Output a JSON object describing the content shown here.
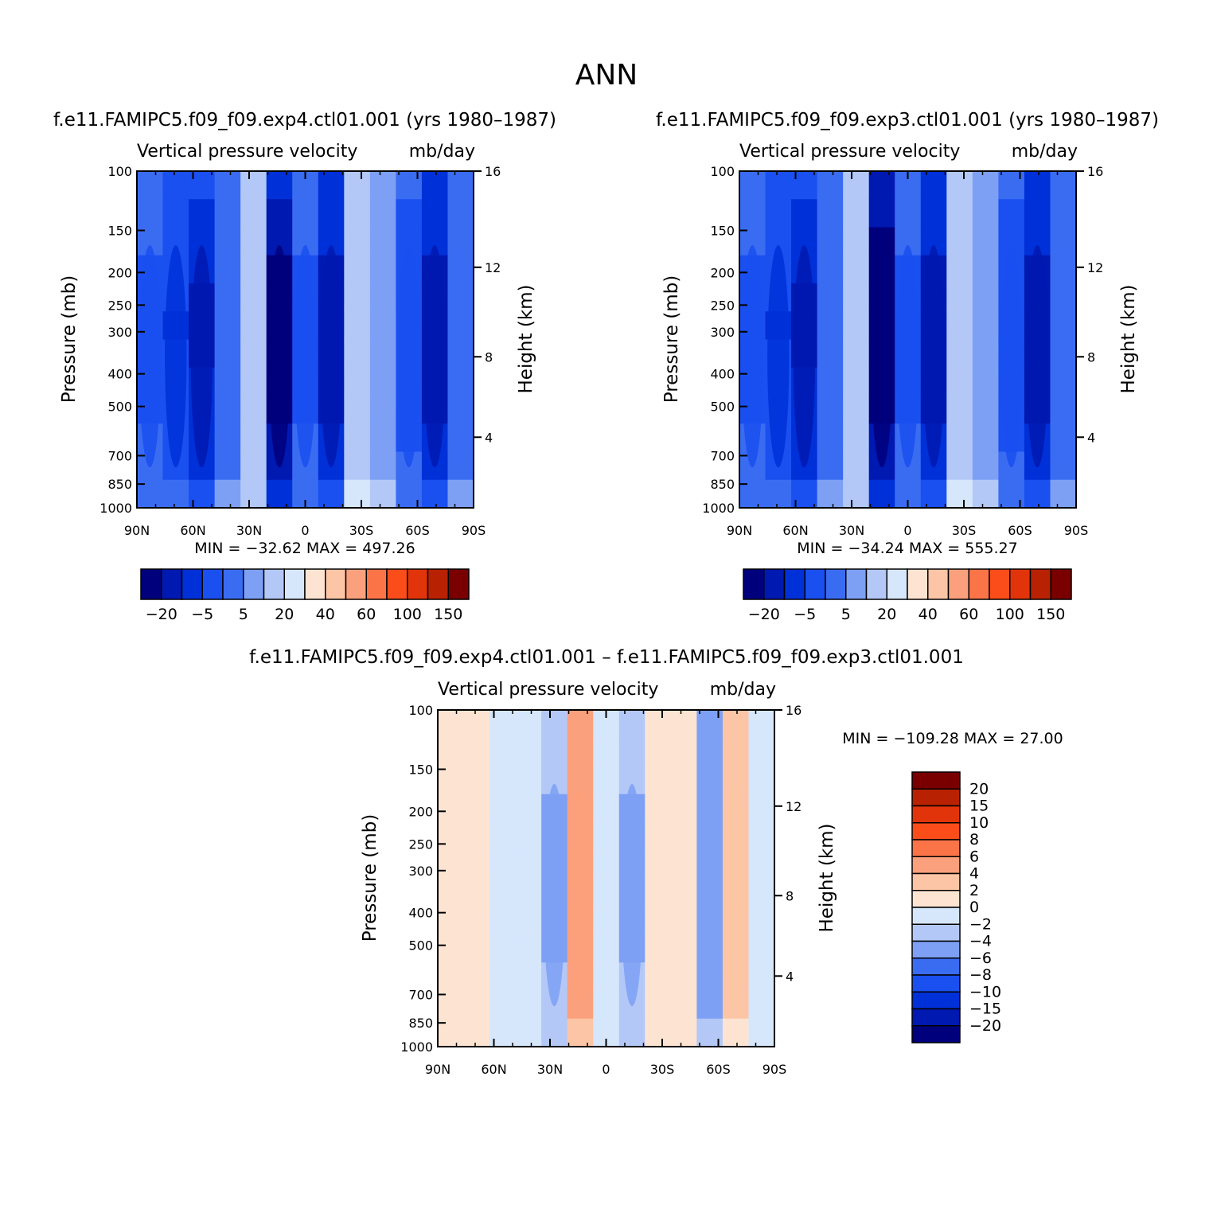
{
  "main_title": "ANN",
  "colors": {
    "blues": [
      "#00007d",
      "#0019b0",
      "#0030d8",
      "#1a4ff0",
      "#3a6cf2",
      "#7da0f5",
      "#b3c8f7",
      "#d6e6fb"
    ],
    "reds": [
      "#fde4d2",
      "#fcc5a5",
      "#fba07c",
      "#fa7448",
      "#fa4d1a",
      "#e2340a",
      "#b82202",
      "#7a0000"
    ]
  },
  "chart_data": [
    {
      "type": "heatmap",
      "panel_title": "f.e11.FAMIPC5.f09_f09.exp4.ctl01.001 (yrs 1980–1987)",
      "left_title": "Vertical pressure velocity",
      "right_title": "mb/day",
      "xlabel": "",
      "ylabel": "Pressure (mb)",
      "ylabel_right": "Height (km)",
      "xticks": [
        "90N",
        "60N",
        "30N",
        "0",
        "30S",
        "60S",
        "90S"
      ],
      "yticks": [
        "100",
        "150",
        "200",
        "250",
        "300",
        "400",
        "500",
        "700",
        "850",
        "1000"
      ],
      "yticks_right": [
        "16",
        "12",
        "8",
        "4"
      ],
      "ylim": [
        1000,
        100
      ],
      "xlim": [
        "90N",
        "90S"
      ],
      "stats": "MIN = −32.62   MAX = 497.26",
      "min": -32.62,
      "max": 497.26,
      "colorbar_labels": [
        "−20",
        "−5",
        "5",
        "20",
        "40",
        "60",
        "100",
        "150"
      ],
      "profile": [
        -10,
        -14,
        -20,
        -8,
        -3,
        -28,
        -10,
        -22,
        -2,
        -5,
        -12,
        -22,
        -8
      ]
    },
    {
      "type": "heatmap",
      "panel_title": "f.e11.FAMIPC5.f09_f09.exp3.ctl01.001 (yrs 1980–1987)",
      "left_title": "Vertical pressure velocity",
      "right_title": "mb/day",
      "xlabel": "",
      "ylabel": "Pressure (mb)",
      "ylabel_right": "Height (km)",
      "xticks": [
        "90N",
        "60N",
        "30N",
        "0",
        "30S",
        "60S",
        "90S"
      ],
      "yticks": [
        "100",
        "150",
        "200",
        "250",
        "300",
        "400",
        "500",
        "700",
        "850",
        "1000"
      ],
      "yticks_right": [
        "16",
        "12",
        "8",
        "4"
      ],
      "ylim": [
        1000,
        100
      ],
      "xlim": [
        "90N",
        "90S"
      ],
      "stats": "MIN = −34.24   MAX = 555.27",
      "min": -34.24,
      "max": 555.27,
      "colorbar_labels": [
        "−20",
        "−5",
        "5",
        "20",
        "40",
        "60",
        "100",
        "150"
      ],
      "profile": [
        -10,
        -14,
        -20,
        -8,
        -3,
        -30,
        -10,
        -22,
        -2,
        -5,
        -12,
        -22,
        -8
      ]
    },
    {
      "type": "heatmap",
      "panel_title": "f.e11.FAMIPC5.f09_f09.exp4.ctl01.001 – f.e11.FAMIPC5.f09_f09.exp3.ctl01.001",
      "left_title": "Vertical pressure velocity",
      "right_title": "mb/day",
      "xlabel": "",
      "ylabel": "Pressure (mb)",
      "ylabel_right": "Height (km)",
      "xticks": [
        "90N",
        "60N",
        "30N",
        "0",
        "30S",
        "60S",
        "90S"
      ],
      "yticks": [
        "100",
        "150",
        "200",
        "250",
        "300",
        "400",
        "500",
        "700",
        "850",
        "1000"
      ],
      "yticks_right": [
        "16",
        "12",
        "8",
        "4"
      ],
      "ylim": [
        1000,
        100
      ],
      "xlim": [
        "90N",
        "90S"
      ],
      "stats": "MIN = −109.28   MAX =   27.00",
      "min": -109.28,
      "max": 27.0,
      "colorbar_labels": [
        "20",
        "15",
        "10",
        "8",
        "6",
        "4",
        "2",
        "0",
        "−2",
        "−4",
        "−6",
        "−8",
        "−10",
        "−15",
        "−20"
      ],
      "profile": [
        1,
        0.5,
        -1,
        -0.5,
        -3,
        6,
        -0.5,
        -3,
        1,
        0.5,
        -4,
        3,
        -1
      ]
    }
  ]
}
